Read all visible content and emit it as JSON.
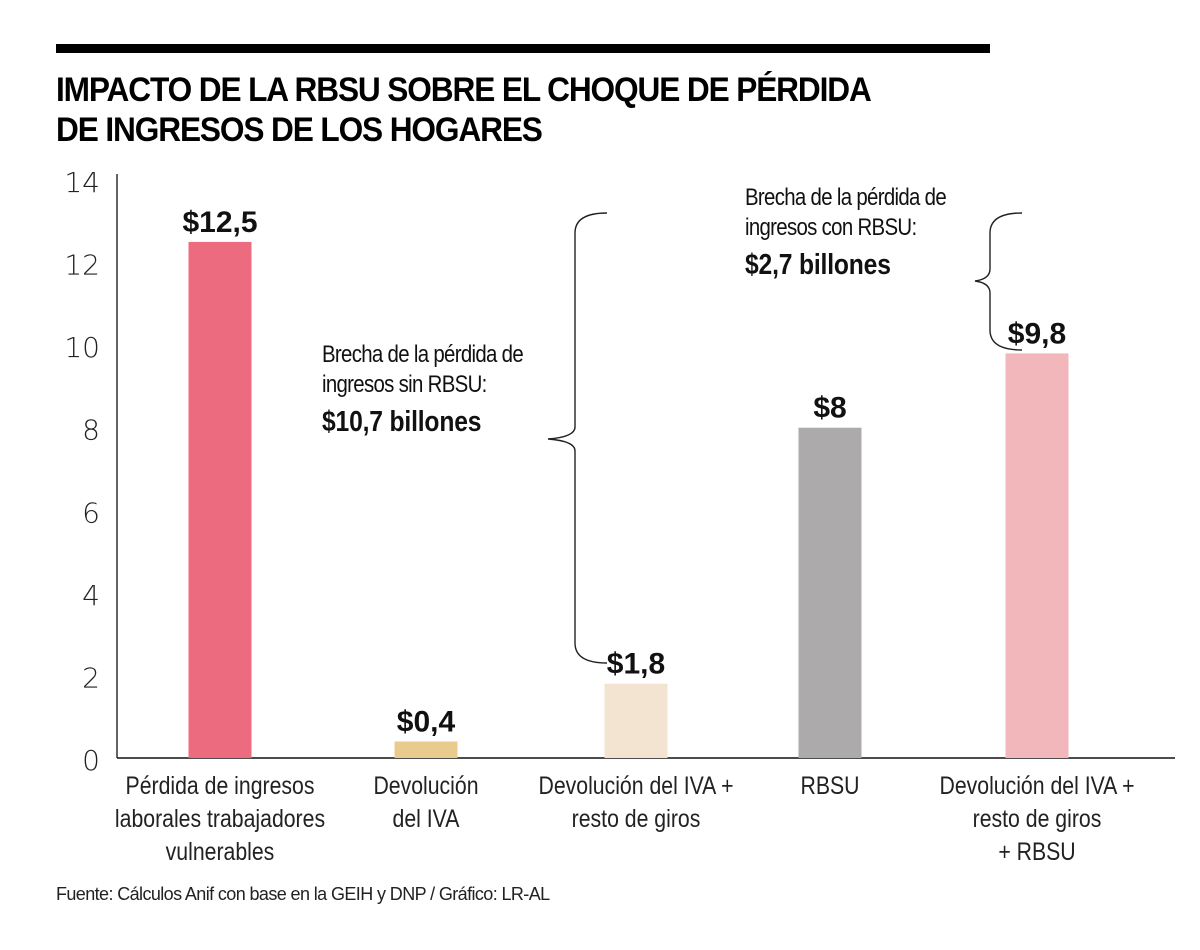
{
  "title_lines": [
    "IMPACTO DE LA RBSU SOBRE EL CHOQUE DE PÉRDIDA",
    "DE INGRESOS DE LOS HOGARES"
  ],
  "source": "Fuente: Cálculos Anif con base en la GEIH y DNP / Gráfico: LR-AL",
  "chart_data": {
    "type": "bar",
    "title": "IMPACTO DE LA RBSU SOBRE EL CHOQUE DE PÉRDIDA DE INGRESOS DE LOS HOGARES",
    "xlabel": "",
    "ylabel": "",
    "ylim": [
      0,
      14
    ],
    "yticks": [
      0,
      2,
      4,
      6,
      8,
      10,
      12,
      14
    ],
    "grid": false,
    "categories": [
      [
        "Pérdida de ingresos",
        "laborales trabajadores",
        "vulnerables"
      ],
      [
        "Devolución",
        "del IVA"
      ],
      [
        "Devolución del IVA +",
        "resto de giros"
      ],
      [
        "RBSU"
      ],
      [
        "Devolución del IVA +",
        "resto de giros",
        "+ RBSU"
      ]
    ],
    "values": [
      12.5,
      0.4,
      1.8,
      8,
      9.8
    ],
    "data_labels": [
      "$12,5",
      "$0,4",
      "$1,8",
      "$8",
      "$9,8"
    ],
    "colors": [
      "#ec6b7f",
      "#e9cb8e",
      "#f3e4d1",
      "#acaaab",
      "#f2b7bb"
    ],
    "annotations": [
      {
        "lines": [
          "Brecha de la pérdida de",
          "ingresos sin RBSU:"
        ],
        "emphasis": "$10,7 billones",
        "brace_from": 1.8,
        "brace_to": 12.5
      },
      {
        "lines": [
          "Brecha de la pérdida de",
          "ingresos con RBSU:"
        ],
        "emphasis": "$2,7 billones",
        "brace_from": 9.8,
        "brace_to": 12.5
      }
    ]
  }
}
